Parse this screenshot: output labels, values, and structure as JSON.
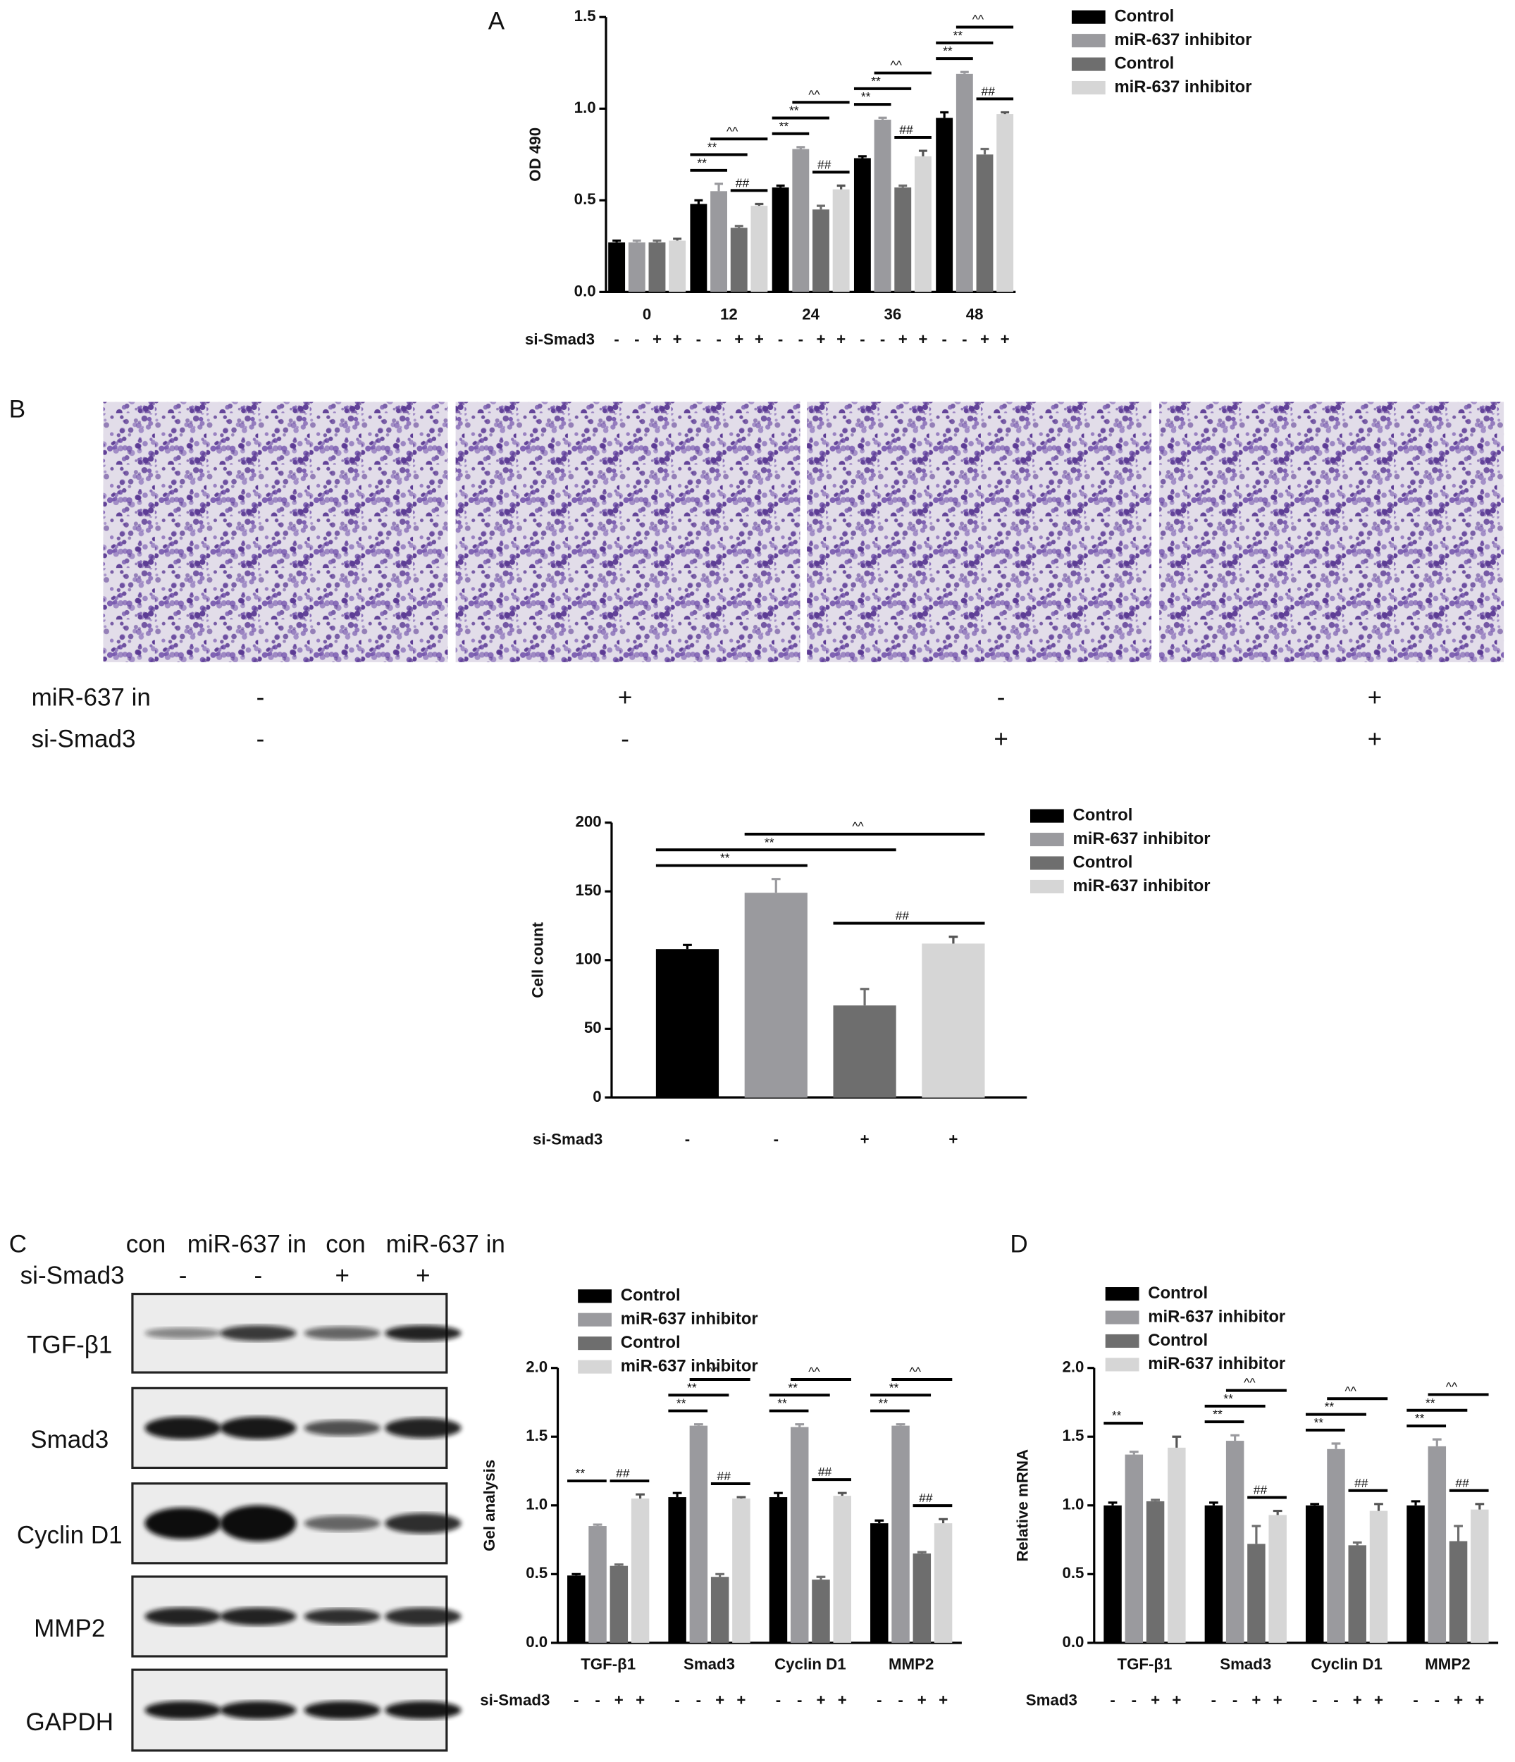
{
  "panel_labels": [
    "A",
    "B",
    "C",
    "D"
  ],
  "chart_data": [
    {
      "type": "bar",
      "y_label": "OD 490",
      "categories": [
        "0",
        "12",
        "24",
        "36",
        "48"
      ],
      "series": [
        {
          "name": "Control",
          "color": "#000000",
          "values": [
            0.27,
            0.48,
            0.57,
            0.73,
            0.95
          ],
          "errors": [
            0.01,
            0.02,
            0.01,
            0.01,
            0.03
          ]
        },
        {
          "name": "miR-637 inhibitor",
          "color": "#9a9a9e",
          "values": [
            0.27,
            0.55,
            0.78,
            0.94,
            1.19
          ],
          "errors": [
            0.01,
            0.04,
            0.01,
            0.01,
            0.01
          ]
        },
        {
          "name": "Control",
          "color": "#6e6e6e",
          "values": [
            0.27,
            0.35,
            0.45,
            0.57,
            0.75
          ],
          "errors": [
            0.01,
            0.01,
            0.02,
            0.01,
            0.03
          ]
        },
        {
          "name": "miR-637 inhibitor",
          "color": "#d6d6d6",
          "values": [
            0.28,
            0.47,
            0.56,
            0.74,
            0.97
          ],
          "errors": [
            0.01,
            0.01,
            0.02,
            0.03,
            0.01
          ]
        }
      ],
      "ylim": [
        0,
        1.5
      ],
      "yticks": [
        {
          "value": 0,
          "label": "0.0"
        },
        {
          "value": 0.5,
          "label": "0.5"
        },
        {
          "value": 1,
          "label": "1.0"
        },
        {
          "value": 1.5,
          "label": "1.5"
        }
      ],
      "significance": [
        [
          null,
          null,
          null,
          null
        ],
        [
          "**",
          "**",
          "^^",
          "##"
        ],
        [
          "**",
          "**",
          "^^",
          "##"
        ],
        [
          "**",
          "**",
          "^^",
          "##"
        ],
        [
          "**",
          "**",
          "^^",
          "##"
        ]
      ],
      "condition": {
        "label": "si-Smad3",
        "signs": [
          "-",
          "-",
          "+",
          "+"
        ]
      }
    },
    {
      "type": "bar",
      "y_label": "Cell count",
      "categories": [
        null
      ],
      "series": [
        {
          "name": "Control",
          "color": "#000000",
          "values": [
            108
          ],
          "errors": [
            3
          ]
        },
        {
          "name": "miR-637 inhibitor",
          "color": "#9a9a9e",
          "values": [
            149
          ],
          "errors": [
            10
          ]
        },
        {
          "name": "Control",
          "color": "#6e6e6e",
          "values": [
            67
          ],
          "errors": [
            12
          ]
        },
        {
          "name": "miR-637 inhibitor",
          "color": "#d6d6d6",
          "values": [
            112
          ],
          "errors": [
            5
          ]
        }
      ],
      "ylim": [
        0,
        200
      ],
      "yticks": [
        0,
        50,
        100,
        150,
        200
      ],
      "significance": [
        [
          "**",
          "**",
          "^^",
          "##"
        ]
      ],
      "condition": {
        "label": "si-Smad3",
        "signs": [
          "-",
          "-",
          "+",
          "+"
        ]
      }
    },
    {
      "type": "bar",
      "y_label": "Gel analysis",
      "categories": [
        "TGF-β1",
        "Smad3",
        "Cyclin D1",
        "MMP2"
      ],
      "series": [
        {
          "name": "Control",
          "color": "#000000",
          "values": [
            0.49,
            1.06,
            1.06,
            0.87
          ],
          "errors": [
            0.01,
            0.03,
            0.03,
            0.02
          ]
        },
        {
          "name": "miR-637 inhibitor",
          "color": "#9a9a9e",
          "values": [
            0.85,
            1.58,
            1.57,
            1.58
          ],
          "errors": [
            0.01,
            0.01,
            0.02,
            0.01
          ]
        },
        {
          "name": "Control",
          "color": "#6e6e6e",
          "values": [
            0.56,
            0.48,
            0.46,
            0.65
          ],
          "errors": [
            0.01,
            0.02,
            0.02,
            0.01
          ]
        },
        {
          "name": "miR-637 inhibitor",
          "color": "#d6d6d6",
          "values": [
            1.05,
            1.05,
            1.07,
            0.87
          ],
          "errors": [
            0.03,
            0.01,
            0.02,
            0.03
          ]
        }
      ],
      "ylim": [
        0,
        2
      ],
      "yticks": [
        {
          "value": 0,
          "label": "0.0"
        },
        {
          "value": 0.5,
          "label": "0.5"
        },
        {
          "value": 1,
          "label": "1.0"
        },
        {
          "value": 1.5,
          "label": "1.5"
        },
        {
          "value": 2,
          "label": "2.0"
        }
      ],
      "significance": [
        [
          "**",
          null,
          null,
          "##"
        ],
        [
          "**",
          "**",
          "^^",
          "##"
        ],
        [
          "**",
          "**",
          "^^",
          "##"
        ],
        [
          "**",
          "**",
          "^^",
          "##"
        ]
      ],
      "condition": {
        "label": "si-Smad3",
        "signs": [
          "-",
          "-",
          "+",
          "+"
        ]
      }
    },
    {
      "type": "bar",
      "y_label": "Relative mRNA",
      "categories": [
        "TGF-β1",
        "Smad3",
        "Cyclin D1",
        "MMP2"
      ],
      "series": [
        {
          "name": "Control",
          "color": "#000000",
          "values": [
            1.0,
            1.0,
            1.0,
            1.0
          ],
          "errors": [
            0.02,
            0.02,
            0.01,
            0.03
          ]
        },
        {
          "name": "miR-637 inhibitor",
          "color": "#9a9a9e",
          "values": [
            1.37,
            1.47,
            1.41,
            1.43
          ],
          "errors": [
            0.02,
            0.04,
            0.04,
            0.05
          ]
        },
        {
          "name": "Control",
          "color": "#6e6e6e",
          "values": [
            1.03,
            0.72,
            0.71,
            0.74
          ],
          "errors": [
            0.01,
            0.13,
            0.02,
            0.11
          ]
        },
        {
          "name": "miR-637 inhibitor",
          "color": "#d6d6d6",
          "values": [
            1.42,
            0.93,
            0.96,
            0.97
          ],
          "errors": [
            0.08,
            0.03,
            0.05,
            0.04
          ]
        }
      ],
      "ylim": [
        0,
        2
      ],
      "yticks": [
        {
          "value": 0,
          "label": "0.0"
        },
        {
          "value": 0.5,
          "label": "0.5"
        },
        {
          "value": 1,
          "label": "1.0"
        },
        {
          "value": 1.5,
          "label": "1.5"
        },
        {
          "value": 2,
          "label": "2.0"
        }
      ],
      "significance": [
        [
          "**",
          null,
          null,
          null
        ],
        [
          "**",
          "**",
          "^^",
          "##"
        ],
        [
          "**",
          "**",
          "^^",
          "##"
        ],
        [
          "**",
          "**",
          "^^",
          "##"
        ]
      ],
      "condition": {
        "label": "Smad3",
        "signs": [
          "-",
          "-",
          "+",
          "+"
        ]
      }
    }
  ],
  "migration_images": {
    "rows": [
      {
        "label": "miR-637 in",
        "signs": [
          "-",
          "+",
          "-",
          "+"
        ]
      },
      {
        "label": "si-Smad3",
        "signs": [
          "-",
          "-",
          "+",
          "+"
        ]
      }
    ]
  },
  "western_blot": {
    "columns": [
      "con",
      "miR-637 in",
      "con",
      "miR-637 in"
    ],
    "condition": {
      "label": "si-Smad3",
      "signs": [
        "-",
        "-",
        "+",
        "+"
      ]
    },
    "bands": [
      "TGF-β1",
      "Smad3",
      "Cyclin D1",
      "MMP2",
      "GAPDH"
    ]
  }
}
